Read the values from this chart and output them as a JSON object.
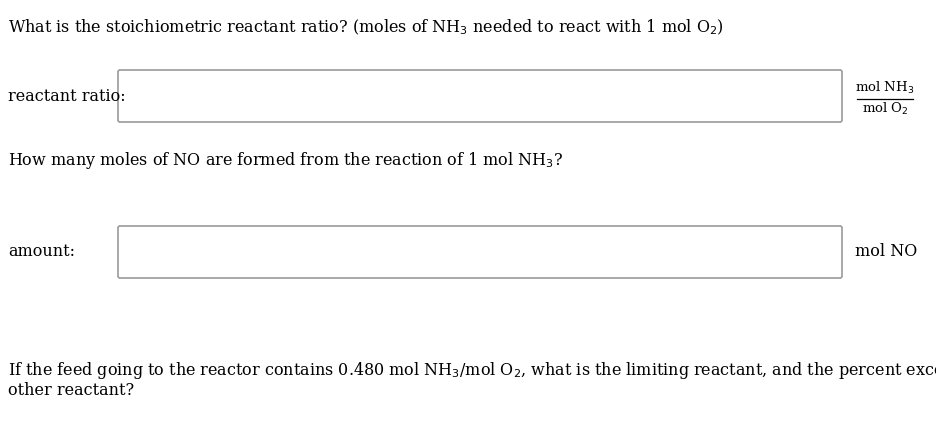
{
  "background_color": "#ffffff",
  "text_color": "#000000",
  "box_edge_color": "#999999",
  "title_line1": "What is the stoichiometric reactant ratio? (moles of NH$_3$ needed to react with 1 mol O$_2$)",
  "label1": "reactant ratio:",
  "label2": "amount:",
  "unit1_top": "mol NH$_3$",
  "unit1_bottom": "mol O$_2$",
  "unit2": "mol NO",
  "question2": "How many moles of NO are formed from the reaction of 1 mol NH$_3$?",
  "question3_line1": "If the feed going to the reactor contains 0.480 mol NH$_3$/mol O$_2$, what is the limiting reactant, and the percent excess of the",
  "question3_line2": "other reactant?",
  "fontsize_main": 11.5,
  "fontsize_unit": 9.5,
  "fig_width": 9.36,
  "fig_height": 4.43,
  "dpi": 100
}
